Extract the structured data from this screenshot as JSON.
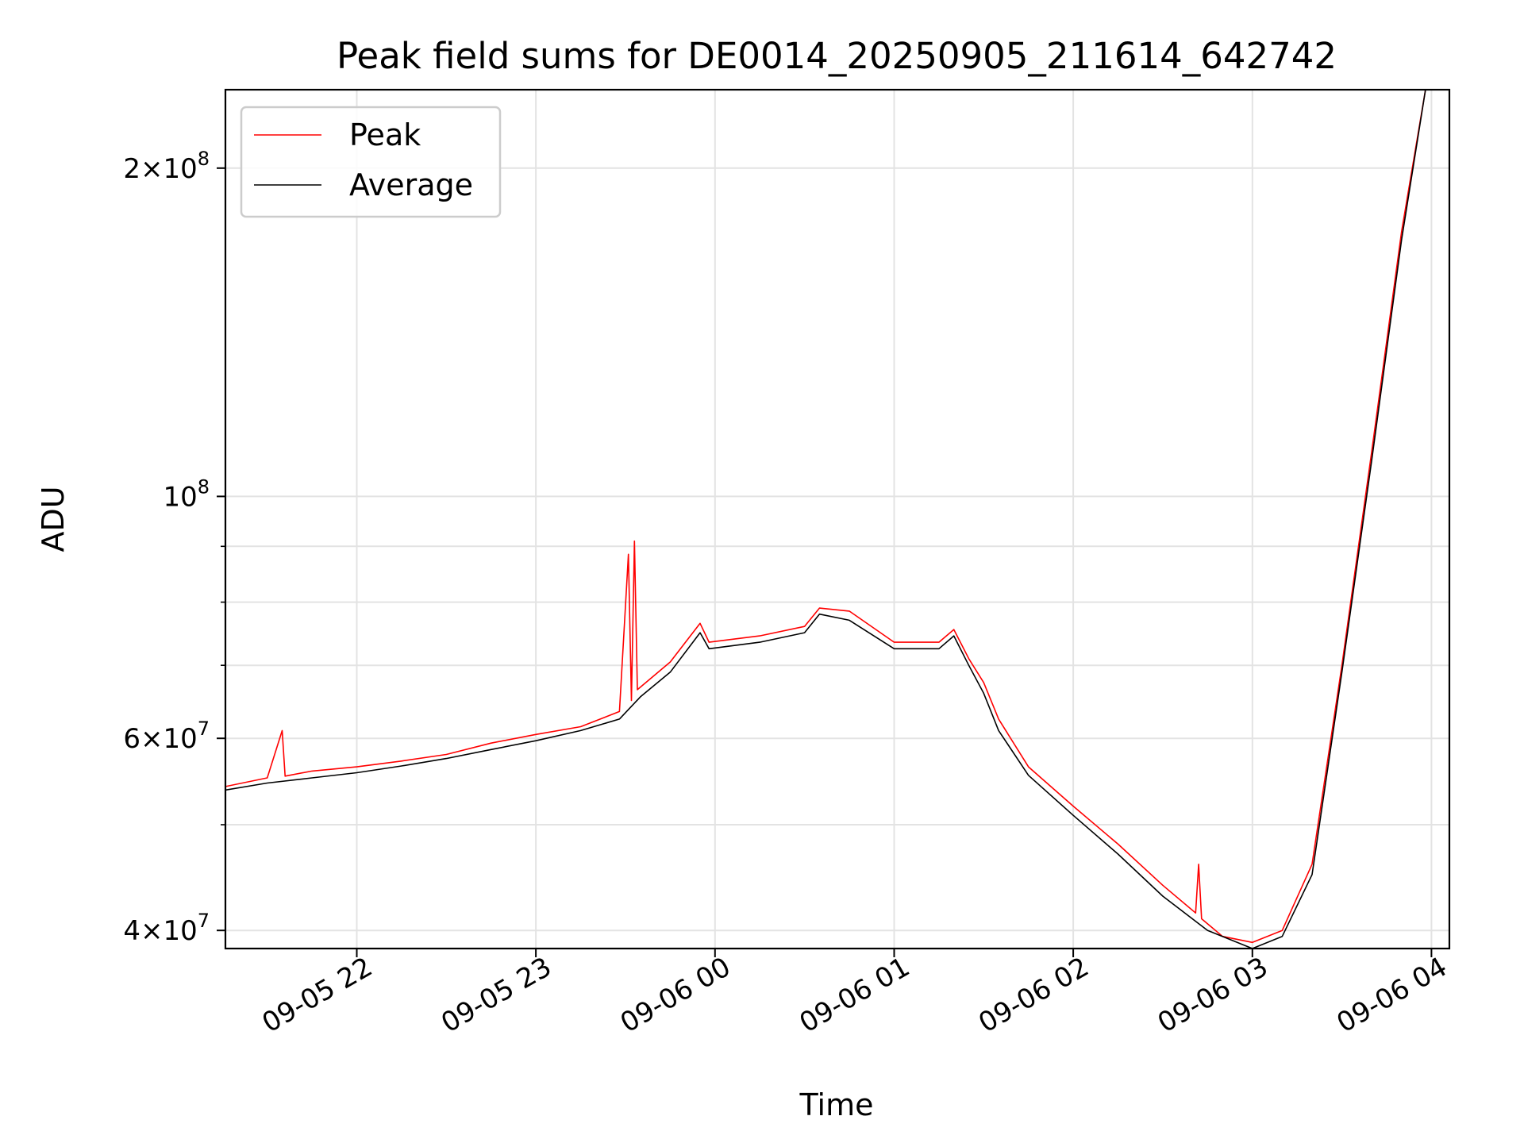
{
  "chart_data": {
    "type": "line",
    "title": "Peak field sums for DE0014_20250905_211614_642742",
    "xlabel": "Time",
    "ylabel": "ADU",
    "y_scale": "log",
    "xlim": [
      "2025-09-05 21:16",
      "2025-09-06 04:06"
    ],
    "ylim": [
      38500000,
      236000000
    ],
    "grid": true,
    "legend_position": "upper left",
    "x_ticks": [
      {
        "value": "2025-09-05 22:00",
        "label": "09-05 22"
      },
      {
        "value": "2025-09-05 23:00",
        "label": "09-05 23"
      },
      {
        "value": "2025-09-06 00:00",
        "label": "09-06 00"
      },
      {
        "value": "2025-09-06 01:00",
        "label": "09-06 01"
      },
      {
        "value": "2025-09-06 02:00",
        "label": "09-06 02"
      },
      {
        "value": "2025-09-06 03:00",
        "label": "09-06 03"
      },
      {
        "value": "2025-09-06 04:00",
        "label": "09-06 04"
      }
    ],
    "y_ticks": [
      {
        "value": 40000000,
        "label_mantissa": "4",
        "label_times": "×",
        "label_base": "10",
        "label_exp": "7"
      },
      {
        "value": 60000000,
        "label_mantissa": "6",
        "label_times": "×",
        "label_base": "10",
        "label_exp": "7"
      },
      {
        "value": 100000000,
        "label_mantissa": "",
        "label_times": "",
        "label_base": "10",
        "label_exp": "8"
      },
      {
        "value": 200000000,
        "label_mantissa": "2",
        "label_times": "×",
        "label_base": "10",
        "label_exp": "8"
      }
    ],
    "y_minor_grid": [
      50000000,
      70000000,
      80000000,
      90000000
    ],
    "series": [
      {
        "name": "Peak",
        "color": "#ff0000",
        "points": [
          [
            "2025-09-05 21:16",
            54200000
          ],
          [
            "2025-09-05 21:30",
            55200000
          ],
          [
            "2025-09-05 21:35",
            61000000
          ],
          [
            "2025-09-05 21:36",
            55400000
          ],
          [
            "2025-09-05 21:45",
            56000000
          ],
          [
            "2025-09-05 22:00",
            56500000
          ],
          [
            "2025-09-05 22:15",
            57200000
          ],
          [
            "2025-09-05 22:30",
            58000000
          ],
          [
            "2025-09-05 22:45",
            59400000
          ],
          [
            "2025-09-05 23:00",
            60500000
          ],
          [
            "2025-09-05 23:15",
            61500000
          ],
          [
            "2025-09-05 23:28",
            63500000
          ],
          [
            "2025-09-05 23:31",
            88500000
          ],
          [
            "2025-09-05 23:32",
            65000000
          ],
          [
            "2025-09-05 23:33",
            91000000
          ],
          [
            "2025-09-05 23:34",
            66500000
          ],
          [
            "2025-09-05 23:45",
            70500000
          ],
          [
            "2025-09-05 23:55",
            76500000
          ],
          [
            "2025-09-05 23:58",
            73500000
          ],
          [
            "2025-09-06 00:15",
            74500000
          ],
          [
            "2025-09-06 00:30",
            76000000
          ],
          [
            "2025-09-06 00:35",
            79000000
          ],
          [
            "2025-09-06 00:45",
            78500000
          ],
          [
            "2025-09-06 01:00",
            73500000
          ],
          [
            "2025-09-06 01:15",
            73500000
          ],
          [
            "2025-09-06 01:20",
            75500000
          ],
          [
            "2025-09-06 01:25",
            71000000
          ],
          [
            "2025-09-06 01:30",
            67500000
          ],
          [
            "2025-09-06 01:35",
            62500000
          ],
          [
            "2025-09-06 01:45",
            56500000
          ],
          [
            "2025-09-06 02:00",
            52000000
          ],
          [
            "2025-09-06 02:15",
            48000000
          ],
          [
            "2025-09-06 02:30",
            44000000
          ],
          [
            "2025-09-06 02:41",
            41500000
          ],
          [
            "2025-09-06 02:42",
            46000000
          ],
          [
            "2025-09-06 02:43",
            41000000
          ],
          [
            "2025-09-06 02:50",
            39500000
          ],
          [
            "2025-09-06 03:00",
            39000000
          ],
          [
            "2025-09-06 03:10",
            40000000
          ],
          [
            "2025-09-06 03:20",
            46000000
          ],
          [
            "2025-09-06 03:30",
            70000000
          ],
          [
            "2025-09-06 03:40",
            110000000
          ],
          [
            "2025-09-06 03:50",
            175000000
          ],
          [
            "2025-09-06 03:58",
            236000000
          ]
        ]
      },
      {
        "name": "Average",
        "color": "#000000",
        "points": [
          [
            "2025-09-05 21:16",
            53800000
          ],
          [
            "2025-09-05 21:30",
            54600000
          ],
          [
            "2025-09-05 21:45",
            55200000
          ],
          [
            "2025-09-05 22:00",
            55800000
          ],
          [
            "2025-09-05 22:15",
            56600000
          ],
          [
            "2025-09-05 22:30",
            57500000
          ],
          [
            "2025-09-05 22:45",
            58600000
          ],
          [
            "2025-09-05 23:00",
            59700000
          ],
          [
            "2025-09-05 23:15",
            61000000
          ],
          [
            "2025-09-05 23:28",
            62500000
          ],
          [
            "2025-09-05 23:35",
            65500000
          ],
          [
            "2025-09-05 23:45",
            69000000
          ],
          [
            "2025-09-05 23:55",
            75000000
          ],
          [
            "2025-09-05 23:58",
            72500000
          ],
          [
            "2025-09-06 00:15",
            73500000
          ],
          [
            "2025-09-06 00:30",
            75000000
          ],
          [
            "2025-09-06 00:35",
            78000000
          ],
          [
            "2025-09-06 00:45",
            77000000
          ],
          [
            "2025-09-06 01:00",
            72500000
          ],
          [
            "2025-09-06 01:15",
            72500000
          ],
          [
            "2025-09-06 01:20",
            74500000
          ],
          [
            "2025-09-06 01:25",
            70000000
          ],
          [
            "2025-09-06 01:30",
            66000000
          ],
          [
            "2025-09-06 01:35",
            61000000
          ],
          [
            "2025-09-06 01:45",
            55500000
          ],
          [
            "2025-09-06 02:00",
            51000000
          ],
          [
            "2025-09-06 02:15",
            47000000
          ],
          [
            "2025-09-06 02:30",
            43000000
          ],
          [
            "2025-09-06 02:45",
            40000000
          ],
          [
            "2025-09-06 03:00",
            38500000
          ],
          [
            "2025-09-06 03:10",
            39500000
          ],
          [
            "2025-09-06 03:20",
            45000000
          ],
          [
            "2025-09-06 03:30",
            69000000
          ],
          [
            "2025-09-06 03:40",
            108000000
          ],
          [
            "2025-09-06 03:50",
            172000000
          ],
          [
            "2025-09-06 03:58",
            236000000
          ]
        ]
      }
    ]
  }
}
